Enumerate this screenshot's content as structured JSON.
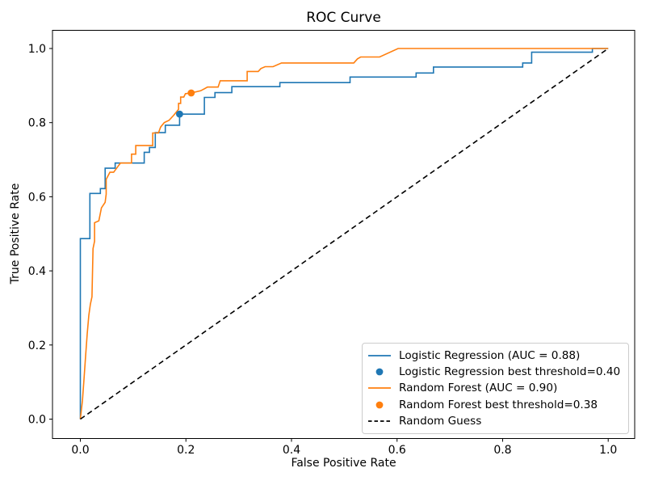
{
  "title": "ROC Curve",
  "chart_data": {
    "type": "line",
    "title": "ROC Curve",
    "xlabel": "False Positive Rate",
    "ylabel": "True Positive Rate",
    "xlim": [
      0.0,
      1.0
    ],
    "ylim": [
      0.0,
      1.0
    ],
    "x_ticks": [
      "0.0",
      "0.2",
      "0.4",
      "0.6",
      "0.8",
      "1.0"
    ],
    "y_ticks": [
      "0.0",
      "0.2",
      "0.4",
      "0.6",
      "0.8",
      "1.0"
    ],
    "grid": false,
    "legend_position": "lower right",
    "series": [
      {
        "name": "Logistic Regression (AUC = 0.88)",
        "auc": 0.88,
        "color": "#1f77b4",
        "style": "solid",
        "points": [
          [
            0.0,
            0.0
          ],
          [
            0.0,
            0.487
          ],
          [
            0.018,
            0.487
          ],
          [
            0.018,
            0.609
          ],
          [
            0.038,
            0.609
          ],
          [
            0.038,
            0.622
          ],
          [
            0.047,
            0.622
          ],
          [
            0.047,
            0.677
          ],
          [
            0.066,
            0.677
          ],
          [
            0.066,
            0.691
          ],
          [
            0.121,
            0.691
          ],
          [
            0.121,
            0.72
          ],
          [
            0.131,
            0.72
          ],
          [
            0.131,
            0.733
          ],
          [
            0.142,
            0.733
          ],
          [
            0.142,
            0.773
          ],
          [
            0.161,
            0.773
          ],
          [
            0.161,
            0.793
          ],
          [
            0.188,
            0.793
          ],
          [
            0.188,
            0.823
          ],
          [
            0.235,
            0.823
          ],
          [
            0.235,
            0.868
          ],
          [
            0.255,
            0.868
          ],
          [
            0.255,
            0.881
          ],
          [
            0.287,
            0.881
          ],
          [
            0.287,
            0.897
          ],
          [
            0.378,
            0.897
          ],
          [
            0.378,
            0.908
          ],
          [
            0.511,
            0.908
          ],
          [
            0.511,
            0.923
          ],
          [
            0.636,
            0.923
          ],
          [
            0.636,
            0.934
          ],
          [
            0.669,
            0.934
          ],
          [
            0.669,
            0.95
          ],
          [
            0.838,
            0.95
          ],
          [
            0.838,
            0.961
          ],
          [
            0.855,
            0.961
          ],
          [
            0.855,
            0.99
          ],
          [
            0.97,
            0.99
          ],
          [
            0.97,
            1.0
          ],
          [
            1.0,
            1.0
          ]
        ]
      },
      {
        "name": "Random Forest (AUC = 0.90)",
        "auc": 0.9,
        "color": "#ff7f0e",
        "style": "solid",
        "points": [
          [
            0.0,
            0.0
          ],
          [
            0.004,
            0.05
          ],
          [
            0.007,
            0.11
          ],
          [
            0.01,
            0.17
          ],
          [
            0.013,
            0.23
          ],
          [
            0.016,
            0.28
          ],
          [
            0.019,
            0.31
          ],
          [
            0.022,
            0.33
          ],
          [
            0.024,
            0.46
          ],
          [
            0.027,
            0.48
          ],
          [
            0.027,
            0.53
          ],
          [
            0.035,
            0.535
          ],
          [
            0.04,
            0.57
          ],
          [
            0.047,
            0.585
          ],
          [
            0.049,
            0.607
          ],
          [
            0.049,
            0.647
          ],
          [
            0.056,
            0.666
          ],
          [
            0.063,
            0.666
          ],
          [
            0.076,
            0.691
          ],
          [
            0.097,
            0.691
          ],
          [
            0.097,
            0.715
          ],
          [
            0.105,
            0.715
          ],
          [
            0.105,
            0.738
          ],
          [
            0.137,
            0.738
          ],
          [
            0.137,
            0.772
          ],
          [
            0.148,
            0.772
          ],
          [
            0.152,
            0.788
          ],
          [
            0.159,
            0.8
          ],
          [
            0.168,
            0.806
          ],
          [
            0.177,
            0.82
          ],
          [
            0.186,
            0.836
          ],
          [
            0.186,
            0.852
          ],
          [
            0.19,
            0.852
          ],
          [
            0.19,
            0.869
          ],
          [
            0.196,
            0.869
          ],
          [
            0.199,
            0.878
          ],
          [
            0.21,
            0.88
          ],
          [
            0.228,
            0.886
          ],
          [
            0.241,
            0.896
          ],
          [
            0.261,
            0.896
          ],
          [
            0.265,
            0.913
          ],
          [
            0.316,
            0.913
          ],
          [
            0.316,
            0.938
          ],
          [
            0.337,
            0.938
          ],
          [
            0.342,
            0.946
          ],
          [
            0.35,
            0.951
          ],
          [
            0.365,
            0.951
          ],
          [
            0.381,
            0.961
          ],
          [
            0.518,
            0.961
          ],
          [
            0.525,
            0.972
          ],
          [
            0.531,
            0.977
          ],
          [
            0.567,
            0.977
          ],
          [
            0.602,
            1.0
          ],
          [
            1.0,
            1.0
          ]
        ]
      },
      {
        "name": "Random Guess",
        "color": "#000000",
        "style": "dashed",
        "points": [
          [
            0.0,
            0.0
          ],
          [
            1.0,
            1.0
          ]
        ]
      }
    ],
    "markers": [
      {
        "name": "Logistic Regression best threshold=0.40",
        "threshold": 0.4,
        "color": "#1f77b4",
        "point": [
          0.188,
          0.823
        ]
      },
      {
        "name": "Random Forest best threshold=0.38",
        "threshold": 0.38,
        "color": "#ff7f0e",
        "point": [
          0.21,
          0.88
        ]
      }
    ],
    "legend": {
      "entries": [
        {
          "label": "Logistic Regression (AUC = 0.88)",
          "color": "#1f77b4",
          "swatch": "line"
        },
        {
          "label": "Logistic Regression best threshold=0.40",
          "color": "#1f77b4",
          "swatch": "dot"
        },
        {
          "label": "Random Forest (AUC = 0.90)",
          "color": "#ff7f0e",
          "swatch": "line"
        },
        {
          "label": "Random Forest best threshold=0.38",
          "color": "#ff7f0e",
          "swatch": "dot"
        },
        {
          "label": "Random Guess",
          "color": "#000000",
          "swatch": "dashed"
        }
      ]
    }
  }
}
